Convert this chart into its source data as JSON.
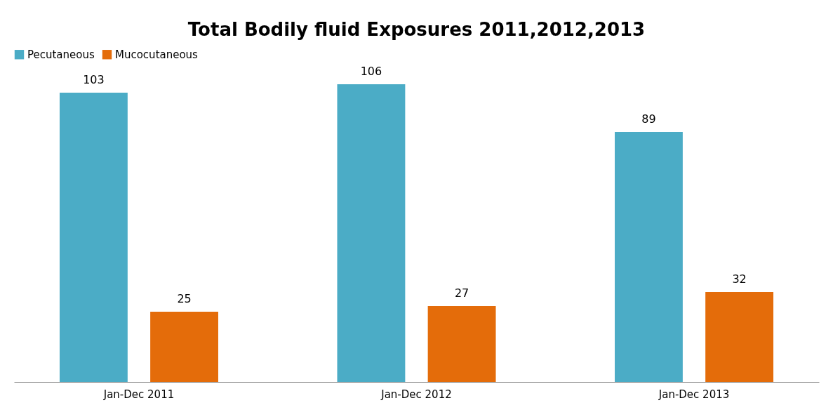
{
  "chart_data": {
    "type": "bar",
    "title": "Total Bodily fluid Exposures 2011,2012,2013",
    "categories": [
      "Jan-Dec 2011",
      "Jan-Dec 2012",
      "Jan-Dec 2013"
    ],
    "series": [
      {
        "name": "Pecutaneous",
        "color": "#4bacc6",
        "values": [
          103,
          106,
          89
        ]
      },
      {
        "name": "Mucocutaneous",
        "color": "#e46c0a",
        "values": [
          25,
          27,
          32
        ]
      }
    ],
    "data_labels": true,
    "legend": "top",
    "grid": false
  }
}
